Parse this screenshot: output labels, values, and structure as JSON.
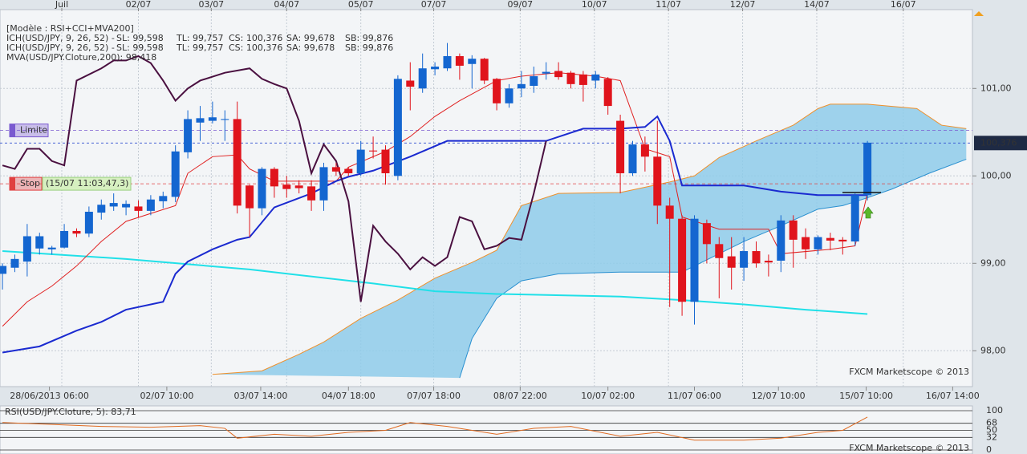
{
  "chart_data": [
    {
      "type": "candlestick",
      "header": "[Modèle : RSI+CCI+MVA200]",
      "legend_lines": [
        [
          {
            "text": "ICH(USD/JPY, 9, 26, 52) -",
            "color": "#e02020"
          },
          {
            "text": "SL: 99,598",
            "color": "#e02020"
          },
          {
            "text": "TL: 99,757",
            "color": "#1a2ab0"
          },
          {
            "text": "CS: 100,376",
            "color": "#444444"
          },
          {
            "text": "SA: 99,678",
            "color": "#f0902a"
          },
          {
            "text": "SB: 99,876",
            "color": "#2a90d0"
          }
        ],
        [
          {
            "text": "ICH(USD/JPY, 9, 26, 52) -",
            "color": "#e02020"
          },
          {
            "text": "SL: 99,598",
            "color": "#e02020"
          },
          {
            "text": "TL: 99,757",
            "color": "#1a2ab0"
          },
          {
            "text": "CS: 100,376",
            "color": "#444444"
          },
          {
            "text": "SA: 99,678",
            "color": "#f0902a"
          },
          {
            "text": "SB: 99,876",
            "color": "#2a90d0"
          }
        ],
        [
          {
            "text": "MVA(USD/JPY.Cloture,200): 98,418",
            "color": "#20d0e0"
          }
        ]
      ],
      "open": [
        98.88,
        98.95,
        99.02,
        99.17,
        99.16,
        99.18,
        99.37,
        99.34,
        99.58,
        99.65,
        99.64,
        99.65,
        99.6,
        99.71,
        99.76,
        100.27,
        100.61,
        100.63,
        100.64,
        100.65,
        99.89,
        99.63,
        100.08,
        99.9,
        99.89,
        99.88,
        99.72,
        100.1,
        100.08,
        100.03,
        100.29,
        100.3,
        100.0,
        101.09,
        101.0,
        101.22,
        101.23,
        101.37,
        101.28,
        101.34,
        101.11,
        100.83,
        101.0,
        101.03,
        101.17,
        101.2,
        101.18,
        101.16,
        101.09,
        101.11,
        100.63,
        100.03,
        100.36,
        100.22,
        99.66,
        99.51,
        98.56,
        99.46,
        99.22,
        99.08,
        98.95,
        99.14,
        99.03,
        99.03,
        99.49,
        99.3,
        99.16,
        99.29,
        99.27,
        99.25,
        99.78
      ],
      "high": [
        99.0,
        99.1,
        99.45,
        99.35,
        99.2,
        99.45,
        99.4,
        99.65,
        99.73,
        99.8,
        99.72,
        99.72,
        99.78,
        99.82,
        100.35,
        100.75,
        100.8,
        100.85,
        100.75,
        100.85,
        99.9,
        100.1,
        100.1,
        100.0,
        99.95,
        99.95,
        100.15,
        100.15,
        100.1,
        100.4,
        100.45,
        100.35,
        101.15,
        101.3,
        101.4,
        101.3,
        101.52,
        101.4,
        101.38,
        101.35,
        101.12,
        101.05,
        101.2,
        101.25,
        101.3,
        101.3,
        101.2,
        101.2,
        101.2,
        101.13,
        100.7,
        100.4,
        100.45,
        100.63,
        99.75,
        99.55,
        99.55,
        99.5,
        99.3,
        99.3,
        99.3,
        99.25,
        99.1,
        99.55,
        99.55,
        99.4,
        99.32,
        99.35,
        99.3,
        99.8,
        100.4
      ],
      "low": [
        98.7,
        98.9,
        98.85,
        99.1,
        99.1,
        99.17,
        99.3,
        99.3,
        99.5,
        99.6,
        99.55,
        99.52,
        99.55,
        99.63,
        99.7,
        100.2,
        100.4,
        100.6,
        100.4,
        99.57,
        99.3,
        99.55,
        99.75,
        99.75,
        99.8,
        99.6,
        99.6,
        100.0,
        100.0,
        100.0,
        100.2,
        99.9,
        99.95,
        100.75,
        100.95,
        101.15,
        101.2,
        101.1,
        101.0,
        101.05,
        100.75,
        100.78,
        100.9,
        100.95,
        101.1,
        101.1,
        101.0,
        100.85,
        101.0,
        100.7,
        99.8,
        100.0,
        100.05,
        99.45,
        98.5,
        98.4,
        98.3,
        99.0,
        98.6,
        98.7,
        98.8,
        98.95,
        98.85,
        98.9,
        98.95,
        99.05,
        99.1,
        99.15,
        99.1,
        99.2,
        99.72
      ],
      "close": [
        98.97,
        99.05,
        99.31,
        99.31,
        99.18,
        99.37,
        99.34,
        99.59,
        99.67,
        99.69,
        99.68,
        99.6,
        99.73,
        99.77,
        100.28,
        100.65,
        100.66,
        100.67,
        100.65,
        99.66,
        99.63,
        100.08,
        99.88,
        99.85,
        99.86,
        99.72,
        100.1,
        100.05,
        100.03,
        100.3,
        100.28,
        100.03,
        101.11,
        101.02,
        101.23,
        101.25,
        101.37,
        101.26,
        101.34,
        101.09,
        100.83,
        101.0,
        101.05,
        101.14,
        101.19,
        101.13,
        101.05,
        101.04,
        101.16,
        100.8,
        100.03,
        100.36,
        100.22,
        99.66,
        99.51,
        98.56,
        99.51,
        99.22,
        99.06,
        98.95,
        99.14,
        99.0,
        99.01,
        99.49,
        99.27,
        99.16,
        99.3,
        99.26,
        99.25,
        99.78,
        100.38
      ],
      "up_color": "#1466d0",
      "down_color": "#e0141c",
      "xlim": [
        -0.2,
        78.5
      ],
      "ylim": [
        97.7,
        101.92
      ],
      "yticks": [
        {
          "value": 98,
          "label": "98,00"
        },
        {
          "value": 99,
          "label": "99,00"
        },
        {
          "value": 100,
          "label": "100,00"
        },
        {
          "value": 101,
          "label": "101,00"
        }
      ],
      "top_xticks": [
        {
          "value": 4.8,
          "label": "Juil"
        },
        {
          "value": 11.0,
          "label": "02/07"
        },
        {
          "value": 16.9,
          "label": "03/07"
        },
        {
          "value": 23.0,
          "label": "04/07"
        },
        {
          "value": 29.0,
          "label": "05/07"
        },
        {
          "value": 34.9,
          "label": "07/07"
        },
        {
          "value": 41.9,
          "label": "09/07"
        },
        {
          "value": 47.9,
          "label": "10/07"
        },
        {
          "value": 53.9,
          "label": "11/07"
        },
        {
          "value": 59.9,
          "label": "12/07"
        },
        {
          "value": 65.9,
          "label": "14/07"
        },
        {
          "value": 72.9,
          "label": "16/07"
        }
      ],
      "xticks": [
        {
          "value": 3.8,
          "label": "28/06/2013 06:00"
        },
        {
          "value": 13.3,
          "label": "02/07 10:00"
        },
        {
          "value": 20.9,
          "label": "03/07 14:00"
        },
        {
          "value": 28.0,
          "label": "04/07 18:00"
        },
        {
          "value": 34.9,
          "label": "07/07 18:00"
        },
        {
          "value": 41.9,
          "label": "08/07 22:00"
        },
        {
          "value": 49.0,
          "label": "10/07 02:00"
        },
        {
          "value": 56.0,
          "label": "11/07 06:00"
        },
        {
          "value": 62.8,
          "label": "12/07 10:00"
        },
        {
          "value": 69.9,
          "label": "15/07 10:00"
        },
        {
          "value": 76.9,
          "label": "16/07 14:00"
        }
      ],
      "grid": true,
      "cloud": {
        "fill": "#8ecbea",
        "sa": {
          "color": "#f0902a",
          "x": [
            17,
            21,
            24,
            26,
            29,
            32,
            35,
            38,
            40,
            42,
            45,
            50,
            54,
            56,
            58,
            61,
            64,
            66,
            67,
            70,
            74,
            76,
            78
          ],
          "values": [
            97.73,
            97.77,
            97.96,
            98.1,
            98.37,
            98.58,
            98.83,
            99.01,
            99.15,
            99.66,
            99.8,
            99.81,
            99.93,
            100.0,
            100.21,
            100.4,
            100.58,
            100.77,
            100.82,
            100.82,
            100.77,
            100.58,
            100.54
          ]
        },
        "sb": {
          "color": "#2a90d0",
          "x": [
            37,
            38,
            40,
            42,
            45,
            50,
            55,
            60,
            63,
            66,
            68,
            70,
            72,
            75,
            78
          ],
          "values": [
            97.69,
            98.14,
            98.6,
            98.8,
            98.88,
            98.9,
            98.9,
            99.25,
            99.43,
            99.62,
            99.66,
            99.75,
            99.85,
            100.03,
            100.19
          ]
        }
      },
      "lines": [
        {
          "color": "#20e0e8",
          "width": 2,
          "x": [
            0,
            10,
            20,
            30,
            35,
            40,
            50,
            55,
            60,
            65,
            70
          ],
          "values": [
            99.14,
            99.05,
            98.93,
            98.77,
            98.68,
            98.65,
            98.62,
            98.58,
            98.53,
            98.47,
            98.42
          ]
        },
        {
          "color": "#e02020",
          "width": 1,
          "x": [
            0,
            2,
            4,
            6,
            8,
            10,
            12,
            14,
            15,
            17,
            19,
            20,
            22,
            25,
            27,
            28,
            31,
            33,
            35,
            37,
            40,
            42,
            45,
            48,
            50,
            52,
            54,
            55,
            58,
            62,
            63,
            67,
            69,
            70
          ],
          "values": [
            98.28,
            98.56,
            98.74,
            98.97,
            99.25,
            99.48,
            99.57,
            99.66,
            100.03,
            100.22,
            100.24,
            100.08,
            99.94,
            99.94,
            99.94,
            100.1,
            100.28,
            100.45,
            100.68,
            100.86,
            101.09,
            101.14,
            101.18,
            101.14,
            101.09,
            100.31,
            100.22,
            99.53,
            99.39,
            99.39,
            99.11,
            99.16,
            99.2,
            99.8
          ]
        },
        {
          "color": "#1a2ad0",
          "width": 2,
          "x": [
            0,
            3,
            6,
            8,
            10,
            13,
            14,
            15,
            17,
            19,
            20,
            22,
            25,
            27,
            28,
            30,
            33,
            36,
            40,
            44,
            47,
            50,
            52,
            53,
            54,
            55,
            60,
            63,
            66,
            70
          ],
          "values": [
            97.98,
            98.05,
            98.23,
            98.33,
            98.47,
            98.56,
            98.88,
            99.02,
            99.16,
            99.27,
            99.3,
            99.64,
            99.8,
            99.94,
            99.99,
            100.06,
            100.22,
            100.4,
            100.4,
            100.4,
            100.54,
            100.54,
            100.56,
            100.68,
            100.4,
            99.89,
            99.89,
            99.82,
            99.78,
            99.78
          ]
        },
        {
          "color": "#4a1040",
          "width": 2,
          "x": [
            0,
            1,
            2,
            3,
            4,
            5,
            6,
            8,
            9,
            10,
            11,
            12,
            13,
            14,
            15,
            16,
            18,
            20,
            21,
            22,
            23,
            24,
            25,
            26,
            27,
            28,
            29,
            30,
            31,
            32,
            33,
            34,
            35,
            36,
            37,
            38,
            39,
            40,
            41,
            42,
            43,
            44
          ],
          "values": [
            100.12,
            100.08,
            100.31,
            100.31,
            100.17,
            100.12,
            101.09,
            101.23,
            101.32,
            101.32,
            101.37,
            101.29,
            101.09,
            100.86,
            101.0,
            101.09,
            101.18,
            101.23,
            101.11,
            101.05,
            101.0,
            100.63,
            100.03,
            100.36,
            100.17,
            99.71,
            98.56,
            99.43,
            99.25,
            99.11,
            98.93,
            99.07,
            98.97,
            99.07,
            99.53,
            99.48,
            99.16,
            99.2,
            99.29,
            99.27,
            99.8,
            100.4
          ]
        }
      ],
      "levels": [
        {
          "label": "Limite",
          "value": 100.52,
          "color": "#7a5ad0"
        },
        {
          "label": "Stop",
          "value": 99.91,
          "color": "#e04040",
          "note": "(15/07 11:03,47,3)"
        }
      ],
      "last_price": {
        "value": 100.376,
        "label": "100,376"
      },
      "watermark": "FXCM Marketscope © 2013"
    },
    {
      "type": "line",
      "title": "RSI(USD/JPY.Cloture, 5): 83,71",
      "color": "#e06a20",
      "x": [
        0,
        4,
        8,
        12,
        16,
        18,
        19,
        22,
        25,
        28,
        31,
        33,
        36,
        40,
        43,
        46,
        50,
        53,
        56,
        60,
        63,
        66,
        68,
        70
      ],
      "values": [
        70,
        65,
        60,
        58,
        62,
        55,
        30,
        40,
        35,
        45,
        50,
        70,
        60,
        40,
        55,
        60,
        35,
        45,
        25,
        25,
        30,
        45,
        50,
        83.71
      ],
      "ylim": [
        0,
        100
      ],
      "yticks": [
        0,
        32,
        50,
        68,
        100
      ],
      "watermark": "FXCM Marketscope © 2013"
    }
  ]
}
